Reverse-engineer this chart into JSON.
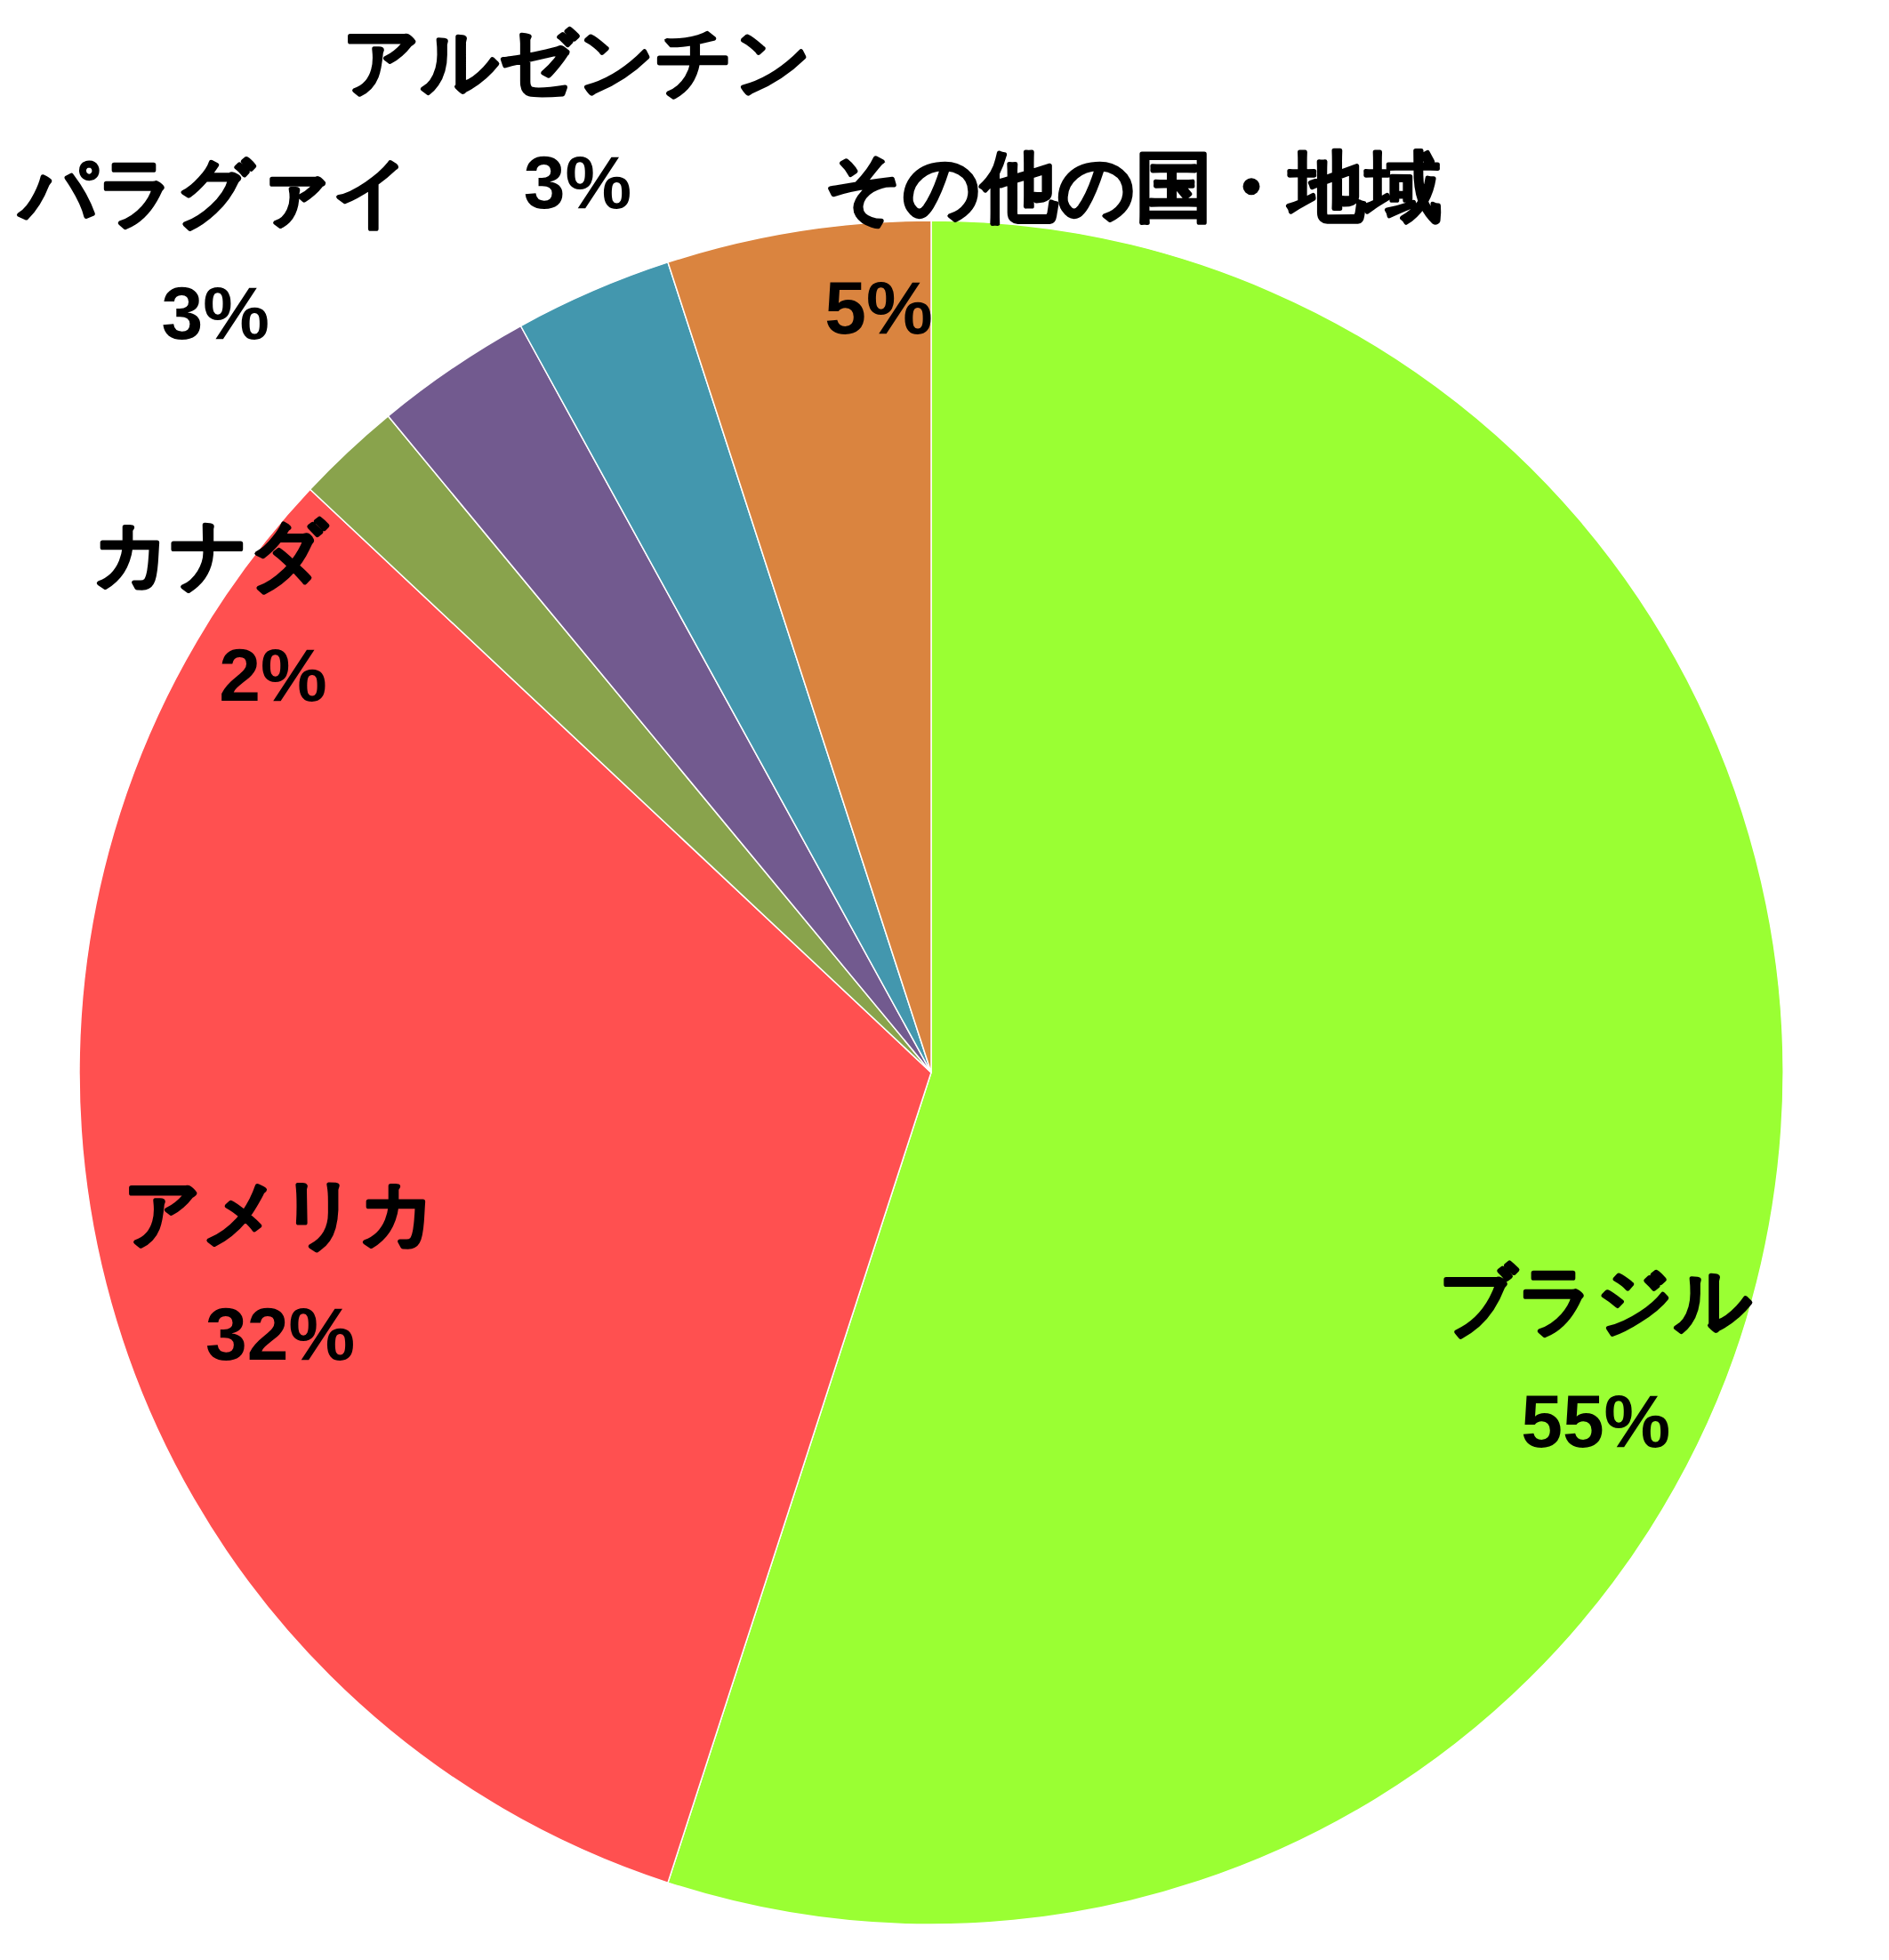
{
  "chart_data": {
    "type": "pie",
    "categories": [
      "ブラジル",
      "アメリカ",
      "カナダ",
      "パラグァイ",
      "アルゼンチン",
      "その他の国・地域"
    ],
    "values": [
      55,
      32,
      2,
      3,
      3,
      5
    ],
    "colors": [
      "#9aff33",
      "#ff5050",
      "#89a34c",
      "#725a8f",
      "#4397ae",
      "#da843f"
    ],
    "value_labels": [
      "55%",
      "32%",
      "2%",
      "3%",
      "3%",
      "5%"
    ]
  }
}
